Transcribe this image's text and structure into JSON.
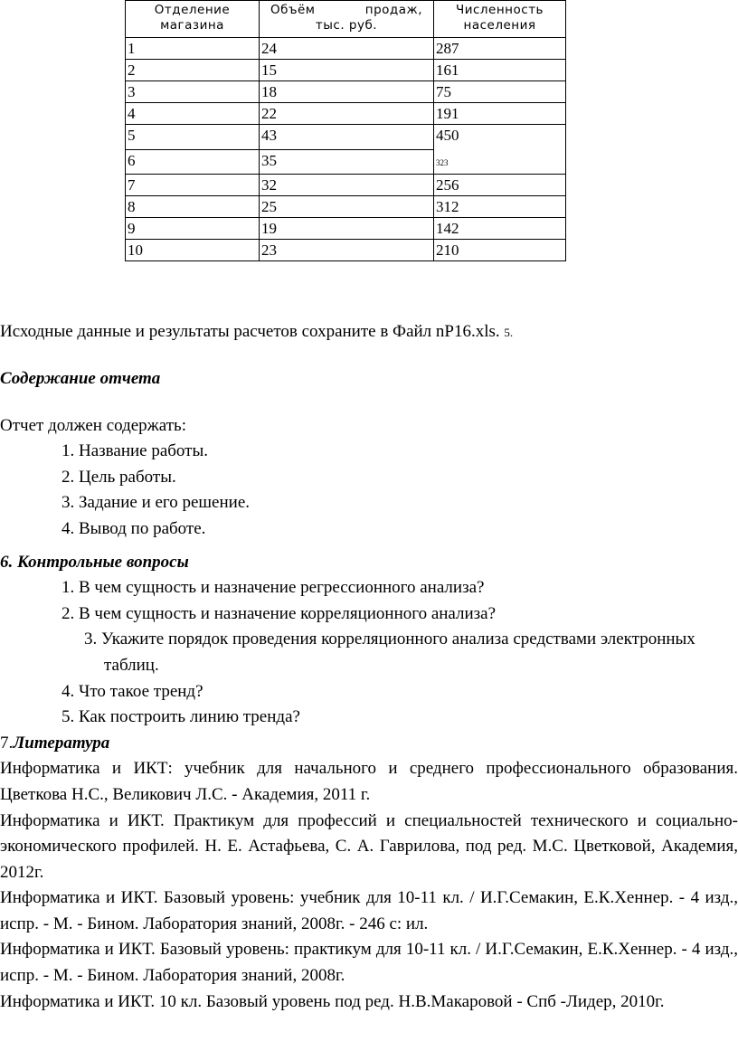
{
  "table": {
    "headers": [
      "Отделение магазина",
      "Объём продаж,",
      "тыс. руб.",
      "Численность населения"
    ],
    "rows": [
      [
        "1",
        "24",
        "287"
      ],
      [
        "2",
        "15",
        "161"
      ],
      [
        "3",
        "18",
        "75"
      ],
      [
        "4",
        "22",
        "191"
      ],
      [
        "5",
        "43",
        "450"
      ],
      [
        "6",
        "35",
        "323"
      ],
      [
        "7",
        "32",
        "256"
      ],
      [
        "8",
        "25",
        "312"
      ],
      [
        "9",
        "19",
        "142"
      ],
      [
        "10",
        "23",
        "210"
      ]
    ]
  },
  "save_note": "Исходные данные и результаты расчетов сохраните в Файл nP16.xls.",
  "save_note_num": "5.",
  "report": {
    "title": "Содержание отчета",
    "intro": "Отчет должен содержать:",
    "items": [
      "1.  Название работы.",
      "2.  Цель работы.",
      "3.  Задание и его решение.",
      "4.  Вывод по работе."
    ]
  },
  "questions": {
    "title": "6. Контрольные вопросы",
    "items": [
      "1.  В чем сущность и назначение регрессионного анализа?",
      "2.  В чем сущность и назначение корреляционного анализа?",
      "3.  Укажите порядок проведения корреляционного анализа средствами электронных таблиц.",
      "4.  Что такое тренд?",
      "5.  Как построить линию тренда?"
    ]
  },
  "literature": {
    "num": "7.",
    "title": "Литература",
    "items": [
      "Информатика и ИКТ: учебник для начального и среднего профессионального образования. Цветкова Н.С., Великович Л.С. - Академия, 2011 г.",
      "Информатика и ИКТ. Практикум для профессий и специальностей технического и социально-экономического профилей. Н. Е. Астафьева, С. А. Гаврилова, под ред. М.С. Цветковой, Академия, 2012г.",
      "Информатика и ИКТ. Базовый уровень: учебник для 10-11 кл. / И.Г.Семакин, Е.К.Хеннер. - 4 изд., испр. - М. - Бином. Лаборатория знаний, 2008г. - 246 с: ил.",
      "Информатика и ИКТ. Базовый уровень: практикум для 10-11 кл. / И.Г.Семакин, Е.К.Хеннер. - 4 изд., испр. - М. - Бином. Лаборатория знаний, 2008г.",
      "Информатика и ИКТ. 10 кл. Базовый уровень под ред. Н.В.Макаровой - Спб -Лидер, 2010г."
    ]
  }
}
